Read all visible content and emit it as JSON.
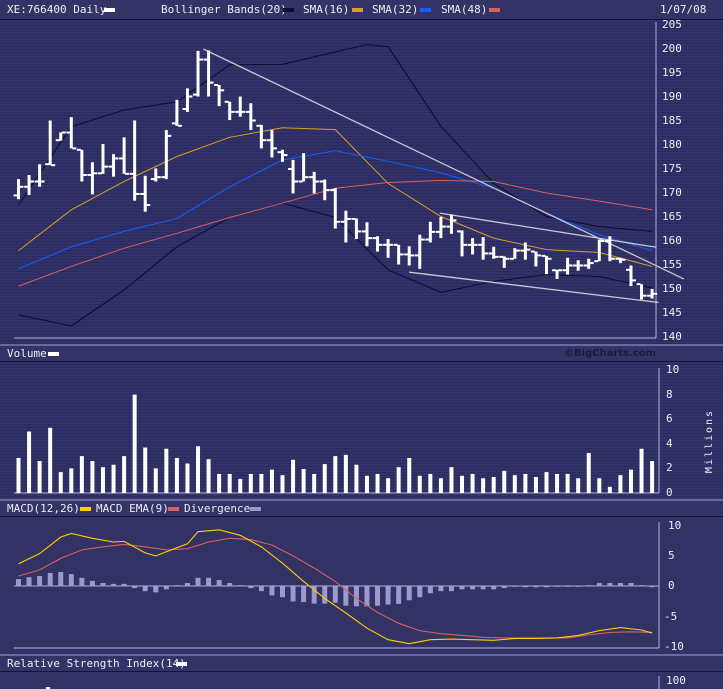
{
  "header": {
    "symbol_label": "XE:766400 Daily",
    "legend": [
      {
        "label": "Bollinger Bands(20)",
        "color": "#0b0b33"
      },
      {
        "label": "SMA(16)",
        "color": "#d8a020"
      },
      {
        "label": "SMA(32)",
        "color": "#1060ff"
      },
      {
        "label": "SMA(48)",
        "color": "#d86060"
      }
    ],
    "date": "1/07/08"
  },
  "volume_header": {
    "label": "Volume",
    "copyright": "©BigCharts.com"
  },
  "macd_header": {
    "legend": [
      {
        "label": "MACD(12,26)",
        "color": "#ffd000"
      },
      {
        "label": "MACD EMA(9)",
        "color": "#d86060"
      },
      {
        "label": "Divergence",
        "color": "#9a9ad0"
      }
    ]
  },
  "rsi_header": {
    "label": "Relative Strength Index(14)"
  },
  "chart_data": [
    {
      "type": "ohlc",
      "ylim": [
        140,
        205
      ],
      "yticks": [
        "205",
        "200",
        "195",
        "190",
        "185",
        "180",
        "175",
        "170",
        "165",
        "160",
        "155",
        "150",
        "145",
        "140"
      ],
      "open": [
        169.5,
        171.3,
        172.4,
        176,
        181,
        182.6,
        179,
        173.75,
        174.1,
        175.5,
        177.2,
        174,
        169.8,
        172.9,
        173.3,
        184.5,
        187.5,
        190.5,
        197.8,
        192.5,
        189,
        186.9,
        186.9,
        184,
        181,
        178.5,
        175,
        172.4,
        173.3,
        172.4,
        170.6,
        164,
        164.6,
        162,
        160.6,
        159.2,
        159.2,
        157.2,
        157,
        160.3,
        161.9,
        163,
        162,
        159.2,
        159.2,
        157.4,
        156.7,
        156.3,
        158,
        158.2,
        157,
        153.9,
        153.9,
        154.9,
        154.9,
        155.8,
        160,
        156.3,
        154,
        151,
        148.6
      ],
      "high": [
        172.9,
        173.75,
        176,
        185.1,
        182.6,
        185.8,
        179,
        176.4,
        180.2,
        178.1,
        181.6,
        185.1,
        173.6,
        175.1,
        183.1,
        189.4,
        191.8,
        199.6,
        199.7,
        192.5,
        189,
        190.1,
        188.7,
        184.2,
        183.1,
        179,
        176.9,
        178.3,
        174.4,
        172.8,
        171,
        166.3,
        164.7,
        163.9,
        161,
        160.4,
        159.2,
        158.9,
        161.3,
        164,
        165,
        165.5,
        162.2,
        160.6,
        160.8,
        158.8,
        156.8,
        158.5,
        159.7,
        157.8,
        156.9,
        154,
        156.5,
        156,
        156.3,
        160.3,
        161,
        156.5,
        154.9,
        151,
        150
      ],
      "low": [
        168.7,
        169.6,
        171.3,
        175.8,
        180.9,
        179.3,
        172.4,
        169.7,
        174,
        173.4,
        174,
        168.4,
        166.1,
        172.4,
        172.9,
        184,
        186.9,
        190.1,
        190.1,
        188.1,
        185.2,
        185.9,
        183.1,
        179.3,
        177.4,
        176.5,
        169.9,
        172.4,
        169.9,
        168.5,
        162.6,
        159.7,
        160.4,
        158.9,
        157.8,
        156.5,
        155.1,
        154.9,
        154.2,
        159.7,
        160.6,
        161.5,
        156.8,
        157.2,
        156.1,
        156.3,
        154.4,
        156.3,
        156.1,
        154.7,
        153.1,
        152.1,
        153,
        153.8,
        154.2,
        155.8,
        155.8,
        155.4,
        150.6,
        147.8,
        148
      ],
      "close": [
        171.3,
        172.4,
        172.4,
        175.8,
        182.6,
        179.3,
        173.75,
        174.1,
        175.5,
        177.2,
        174,
        169.8,
        167.5,
        173.3,
        181.9,
        184,
        190.1,
        197.8,
        193,
        191.4,
        186.9,
        186.9,
        185.1,
        181,
        179.3,
        177.9,
        172.4,
        173.3,
        172.4,
        170.6,
        164,
        164.6,
        162,
        160.6,
        159.2,
        159.2,
        157.2,
        157,
        160.3,
        161.9,
        163,
        164.3,
        159.2,
        159.2,
        157.4,
        156.7,
        156.3,
        158,
        158.2,
        157,
        156.3,
        153.9,
        154.9,
        154.9,
        155.4,
        160,
        156.3,
        156.1,
        151.8,
        148.6,
        149
      ],
      "overlays": [
        {
          "name": "Bollinger Bands(20) upper",
          "color": "#0b0b33",
          "points": [
            [
              1,
              167.5
            ],
            [
              6,
              183.8
            ],
            [
              11,
              187.3
            ],
            [
              16,
              189
            ],
            [
              21,
              196.7
            ],
            [
              26,
              196.8
            ],
            [
              31,
              199.4
            ],
            [
              34,
              200.9
            ],
            [
              36,
              200.5
            ],
            [
              41,
              183.9
            ],
            [
              46,
              172
            ],
            [
              51,
              165.1
            ],
            [
              56,
              163
            ],
            [
              61,
              162
            ]
          ]
        },
        {
          "name": "Bollinger Bands(20) lower",
          "color": "#0b0b33",
          "points": [
            [
              1,
              144.6
            ],
            [
              6,
              142.3
            ],
            [
              11,
              149.8
            ],
            [
              16,
              158.8
            ],
            [
              21,
              164.9
            ],
            [
              26,
              167.9
            ],
            [
              31,
              164.9
            ],
            [
              36,
              154
            ],
            [
              41,
              149.3
            ],
            [
              46,
              151.6
            ],
            [
              51,
              153
            ],
            [
              56,
              152.6
            ],
            [
              61,
              150.2
            ]
          ]
        },
        {
          "name": "SMA(16)",
          "color": "#d8a020",
          "points": [
            [
              1,
              158
            ],
            [
              6,
              166.5
            ],
            [
              11,
              172.4
            ],
            [
              16,
              177.6
            ],
            [
              21,
              181.6
            ],
            [
              26,
              183.6
            ],
            [
              31,
              183.2
            ],
            [
              36,
              172
            ],
            [
              41,
              165.1
            ],
            [
              46,
              160.6
            ],
            [
              51,
              158.2
            ],
            [
              56,
              157.6
            ],
            [
              61,
              154.7
            ]
          ]
        },
        {
          "name": "SMA(32)",
          "color": "#1060ff",
          "points": [
            [
              1,
              154.2
            ],
            [
              6,
              158.8
            ],
            [
              11,
              162
            ],
            [
              16,
              164.7
            ],
            [
              21,
              171.3
            ],
            [
              26,
              176.9
            ],
            [
              31,
              178.8
            ],
            [
              36,
              176.6
            ],
            [
              41,
              174.2
            ],
            [
              46,
              171
            ],
            [
              51,
              165.8
            ],
            [
              56,
              161.3
            ],
            [
              61,
              158
            ]
          ]
        },
        {
          "name": "SMA(48)",
          "color": "#d86060",
          "points": [
            [
              1,
              150.6
            ],
            [
              6,
              154.7
            ],
            [
              11,
              158.5
            ],
            [
              16,
              161.6
            ],
            [
              21,
              164.9
            ],
            [
              26,
              167.9
            ],
            [
              31,
              171
            ],
            [
              36,
              172.2
            ],
            [
              41,
              172.6
            ],
            [
              46,
              172.4
            ],
            [
              51,
              170
            ],
            [
              56,
              168.3
            ],
            [
              61,
              166.5
            ]
          ]
        }
      ],
      "trendlines": [
        {
          "from": [
            18.5,
            200
          ],
          "to": [
            64,
            152.1
          ]
        },
        {
          "from": [
            40.9,
            165.8
          ],
          "to": [
            61.4,
            158.7
          ]
        },
        {
          "from": [
            38,
            153.5
          ],
          "to": [
            61.6,
            147.2
          ]
        }
      ]
    },
    {
      "type": "bar",
      "ylabel": "Millions",
      "ylim": [
        0,
        10
      ],
      "yticks": [
        "10",
        "8",
        "6",
        "4",
        "2",
        "0"
      ],
      "values": [
        2.85,
        5.0,
        2.6,
        5.3,
        1.7,
        2.0,
        3.0,
        2.6,
        2.1,
        2.3,
        3.0,
        8.0,
        3.7,
        2.0,
        3.6,
        2.85,
        2.4,
        3.8,
        2.75,
        1.55,
        1.55,
        1.15,
        1.55,
        1.55,
        1.9,
        1.45,
        2.7,
        1.95,
        1.55,
        2.35,
        3.0,
        3.1,
        2.3,
        1.4,
        1.55,
        1.2,
        2.1,
        2.85,
        1.4,
        1.55,
        1.2,
        2.1,
        1.4,
        1.55,
        1.2,
        1.3,
        1.8,
        1.45,
        1.55,
        1.3,
        1.7,
        1.55,
        1.55,
        1.2,
        3.25,
        1.2,
        0.5,
        1.45,
        1.9,
        3.6,
        2.6
      ]
    },
    {
      "type": "line",
      "ylim": [
        -10,
        10
      ],
      "yticks": [
        "10",
        "5",
        "0",
        "-5",
        "-10"
      ],
      "series": [
        {
          "name": "MACD(12,26)",
          "color": "#ffd000",
          "points": [
            [
              1,
              3.7
            ],
            [
              3,
              5.4
            ],
            [
              5,
              8.1
            ],
            [
              6,
              8.7
            ],
            [
              8,
              7.9
            ],
            [
              10,
              7.3
            ],
            [
              11,
              7.4
            ],
            [
              13,
              5.5
            ],
            [
              14,
              5.0
            ],
            [
              15,
              5.7
            ],
            [
              17,
              7.0
            ],
            [
              18,
              9.0
            ],
            [
              20,
              9.3
            ],
            [
              22,
              8.4
            ],
            [
              24,
              6.5
            ],
            [
              26,
              3.8
            ],
            [
              28,
              0.8
            ],
            [
              30,
              -2.0
            ],
            [
              32,
              -4.4
            ],
            [
              34,
              -6.9
            ],
            [
              36,
              -8.8
            ],
            [
              38,
              -9.45
            ],
            [
              40,
              -8.8
            ],
            [
              42,
              -8.7
            ],
            [
              44,
              -8.8
            ],
            [
              46,
              -8.9
            ],
            [
              48,
              -8.6
            ],
            [
              50,
              -8.6
            ],
            [
              52,
              -8.5
            ],
            [
              54,
              -8.1
            ],
            [
              56,
              -7.3
            ],
            [
              58,
              -6.8
            ],
            [
              60,
              -7.2
            ],
            [
              61,
              -7.7
            ]
          ]
        },
        {
          "name": "MACD EMA(9)",
          "color": "#d86060",
          "points": [
            [
              1,
              1.7
            ],
            [
              3,
              2.7
            ],
            [
              5,
              4.6
            ],
            [
              7,
              6.0
            ],
            [
              9,
              6.5
            ],
            [
              11,
              6.9
            ],
            [
              13,
              6.5
            ],
            [
              15,
              6.0
            ],
            [
              17,
              6.2
            ],
            [
              19,
              7.3
            ],
            [
              21,
              7.9
            ],
            [
              23,
              7.7
            ],
            [
              25,
              6.8
            ],
            [
              27,
              5.0
            ],
            [
              29,
              3.0
            ],
            [
              31,
              0.8
            ],
            [
              33,
              -2.0
            ],
            [
              35,
              -4.3
            ],
            [
              37,
              -6.1
            ],
            [
              39,
              -7.3
            ],
            [
              41,
              -7.8
            ],
            [
              43,
              -8.1
            ],
            [
              45,
              -8.4
            ],
            [
              47,
              -8.5
            ],
            [
              49,
              -8.5
            ],
            [
              51,
              -8.5
            ],
            [
              53,
              -8.5
            ],
            [
              55,
              -8.0
            ],
            [
              57,
              -7.6
            ],
            [
              59,
              -7.5
            ],
            [
              61,
              -7.6
            ]
          ]
        },
        {
          "name": "Divergence",
          "color": "#9a9ad0",
          "type": "bar",
          "values": [
            1.2,
            1.5,
            1.7,
            2.2,
            2.35,
            2.0,
            1.4,
            0.9,
            0.55,
            0.4,
            0.4,
            -0.3,
            -0.8,
            -1.0,
            -0.5,
            0.2,
            0.55,
            1.4,
            1.4,
            1.05,
            0.55,
            0.2,
            -0.3,
            -0.8,
            -1.5,
            -1.8,
            -2.5,
            -2.6,
            -2.85,
            -2.85,
            -2.7,
            -3.2,
            -3.3,
            -3.3,
            -3.2,
            -3.0,
            -2.9,
            -2.3,
            -1.8,
            -1.15,
            -0.8,
            -0.8,
            -0.5,
            -0.5,
            -0.5,
            -0.5,
            -0.3,
            0,
            -0.15,
            -0.15,
            -0.15,
            0,
            0,
            0,
            0.2,
            0.55,
            0.55,
            0.55,
            0.55,
            0.2,
            -0.15
          ]
        }
      ]
    },
    {
      "type": "line",
      "title": "Relative Strength Index(14)",
      "yticks": [
        "100"
      ]
    }
  ]
}
